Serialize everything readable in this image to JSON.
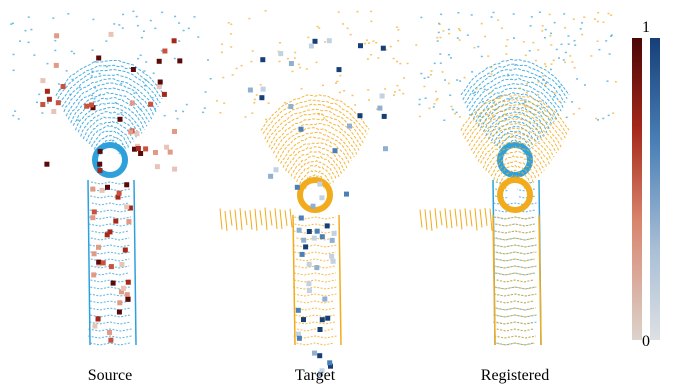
{
  "panels": [
    {
      "label": "Source"
    },
    {
      "label": "Target"
    },
    {
      "label": "Registered"
    }
  ],
  "colorbar": {
    "max_label": "1",
    "min_label": "0"
  }
}
